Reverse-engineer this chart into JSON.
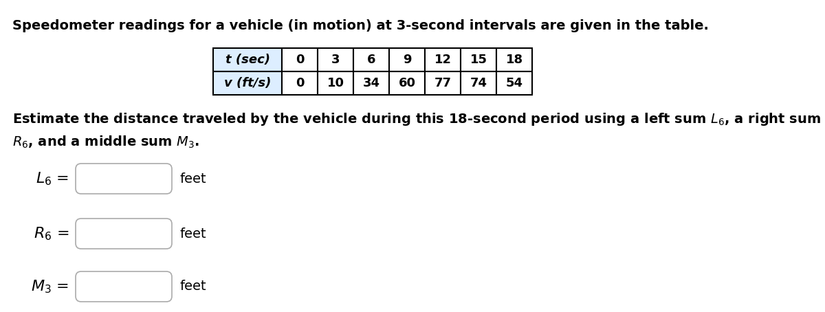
{
  "title": "Speedometer readings for a vehicle (in motion) at 3-second intervals are given in the table.",
  "table_t_label": "t (sec)",
  "table_v_label": "v (ft/s)",
  "t_values": [
    0,
    3,
    6,
    9,
    12,
    15,
    18
  ],
  "v_values": [
    0,
    10,
    34,
    60,
    77,
    74,
    54
  ],
  "para_line1": "Estimate the distance traveled by the vehicle during this 18-second period using a left sum $L_6$, a right sum",
  "para_line2": "$R_6$, and a middle sum $M_3$.",
  "L6_label": "$L_6$ =",
  "R6_label": "$R_6$ =",
  "M3_label": "$M_3$ =",
  "feet_label": "feet",
  "bg_color": "#ffffff",
  "table_header_bg": "#ddeeff",
  "table_data_bg": "#ffffff",
  "table_border_color": "#000000",
  "input_box_bg": "#ffffff",
  "input_box_border": "#aaaaaa",
  "title_fontsize": 14,
  "body_fontsize": 14,
  "table_fontsize": 13,
  "label_fontsize": 16
}
